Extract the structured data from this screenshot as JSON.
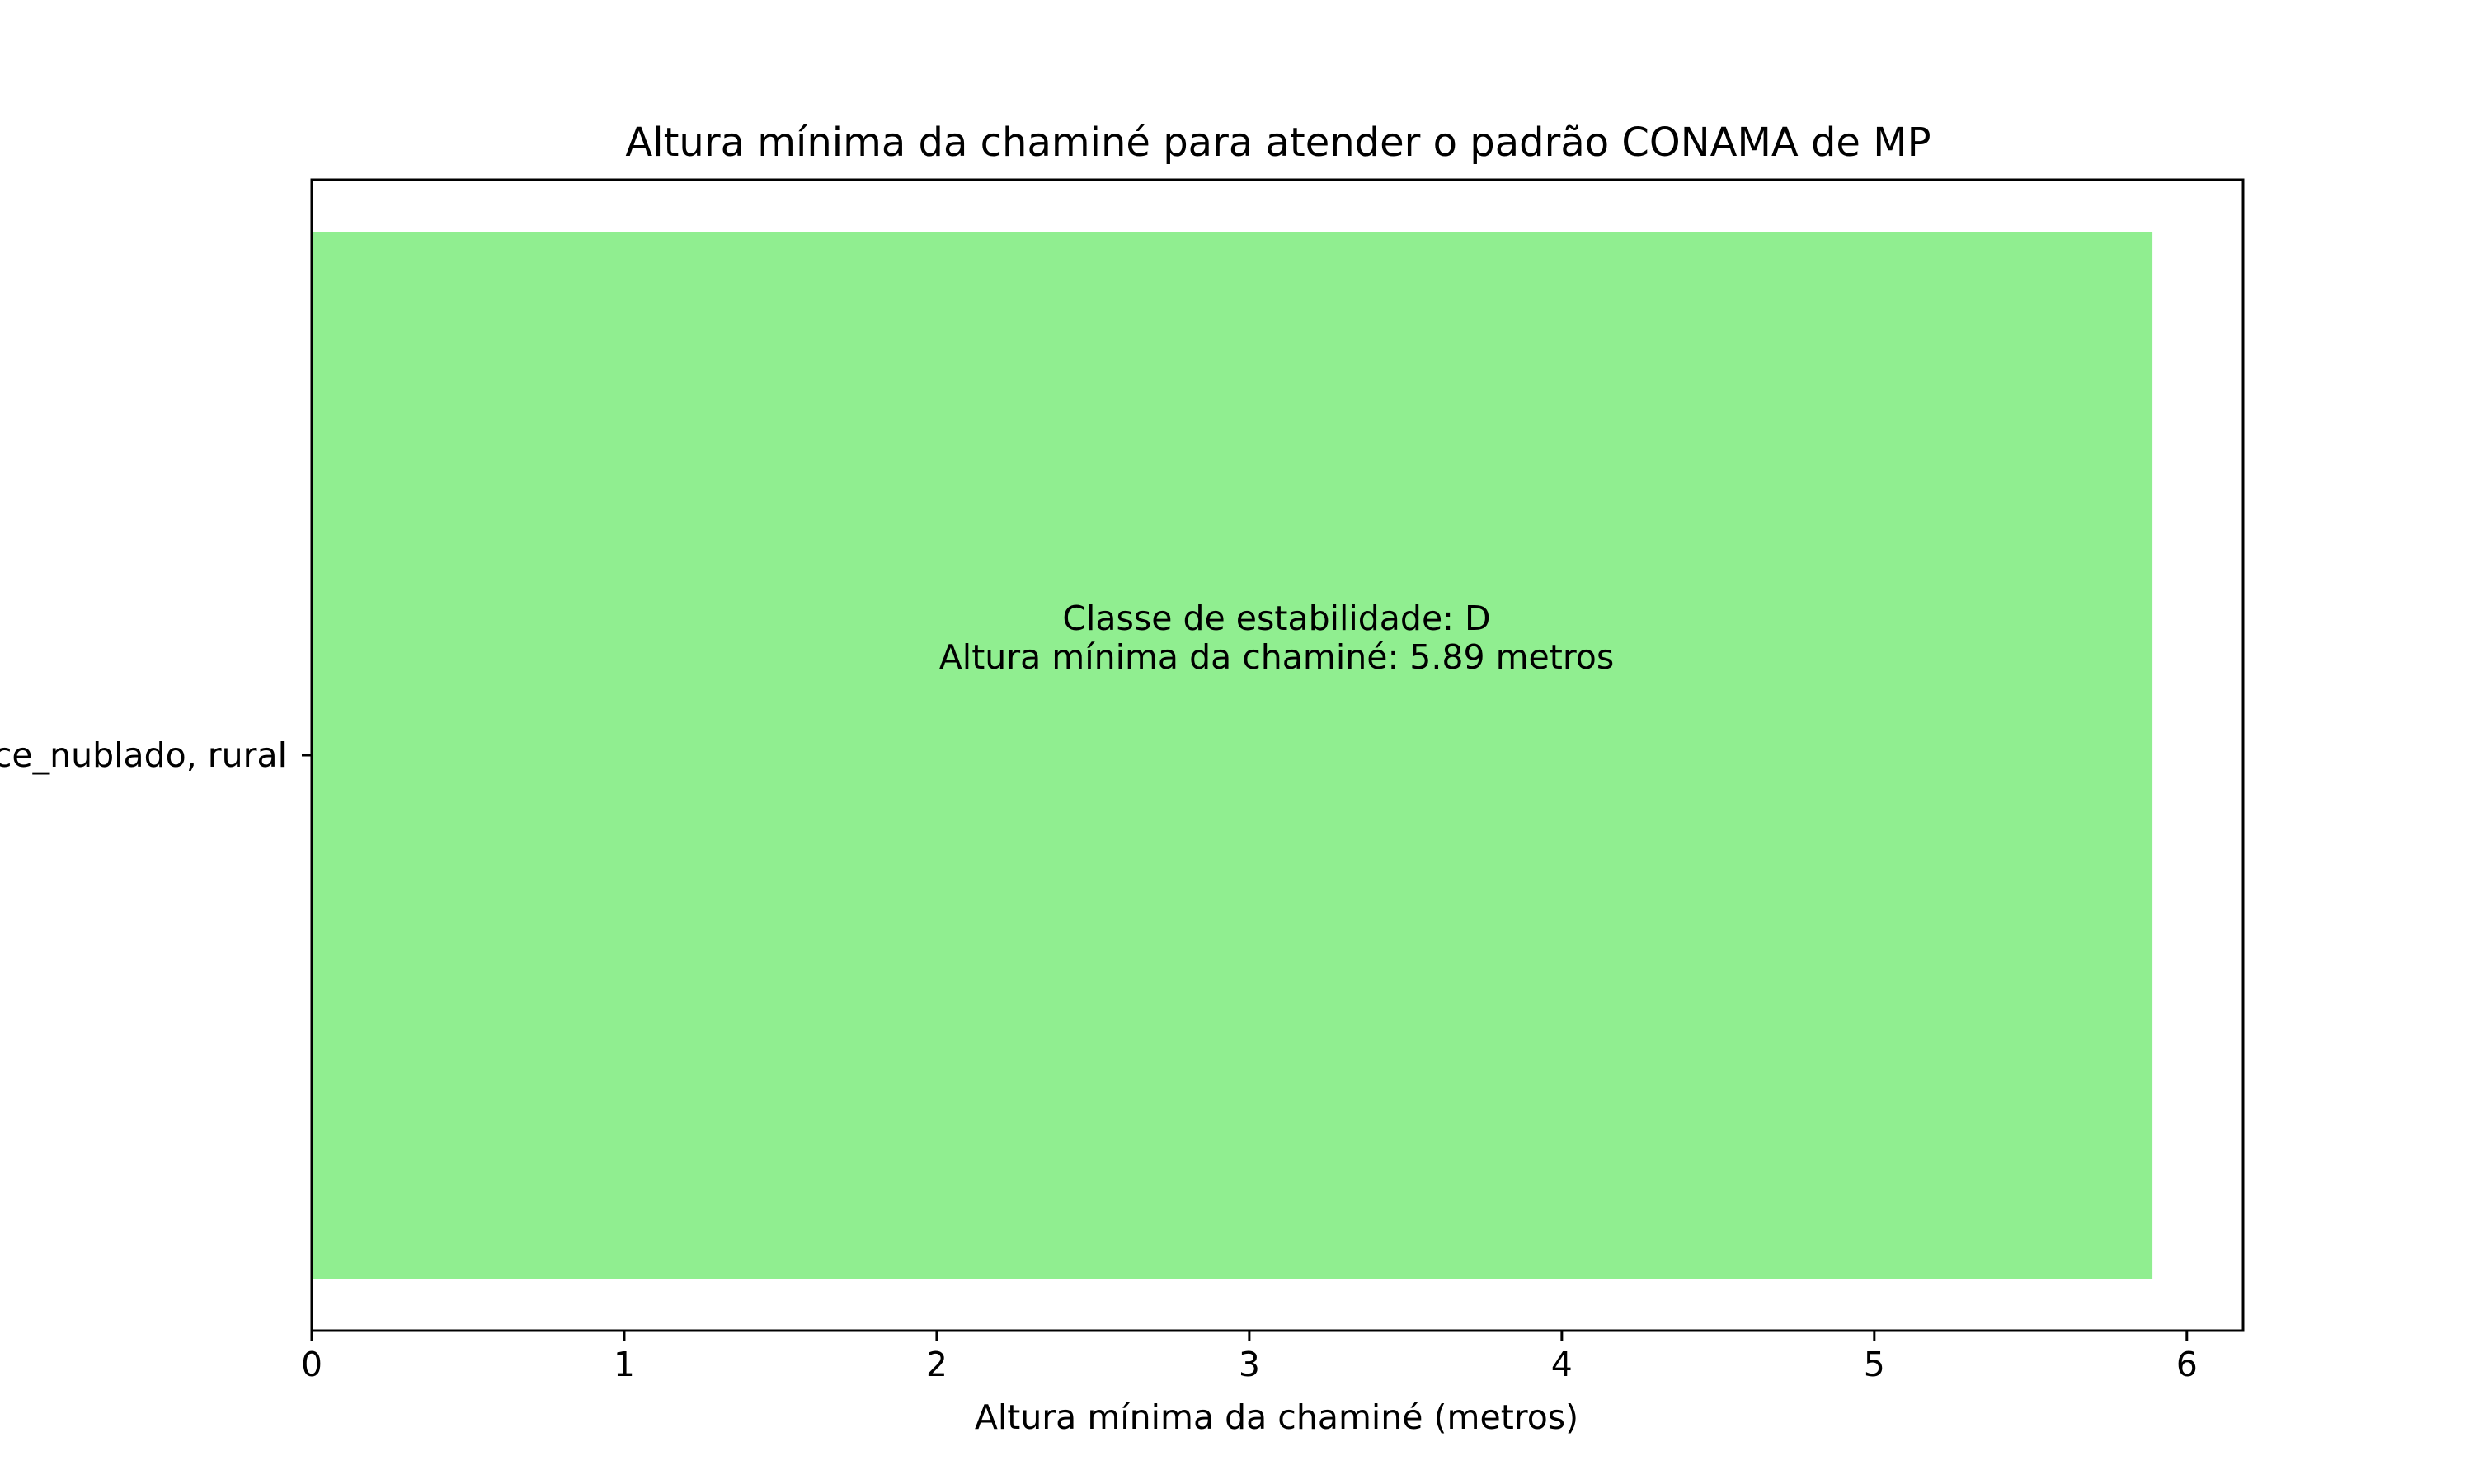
{
  "chart_data": {
    "type": "bar",
    "orientation": "horizontal",
    "title": "Altura mínima da chaminé para atender o padrão CONAMA de MP",
    "xlabel": "Altura mínima da chaminé (metros)",
    "ylabel": "",
    "categories": [
      "ce_nublado, rural"
    ],
    "values": [
      5.89
    ],
    "xlim": [
      0,
      6.18
    ],
    "xticks": [
      0,
      1,
      2,
      3,
      4,
      5,
      6
    ],
    "annotation": {
      "line1": "Classe de estabilidade: D",
      "line2": "Altura mínima da chaminé: 5.89 metros"
    },
    "bar_color": "#90ee90",
    "grid": false
  }
}
